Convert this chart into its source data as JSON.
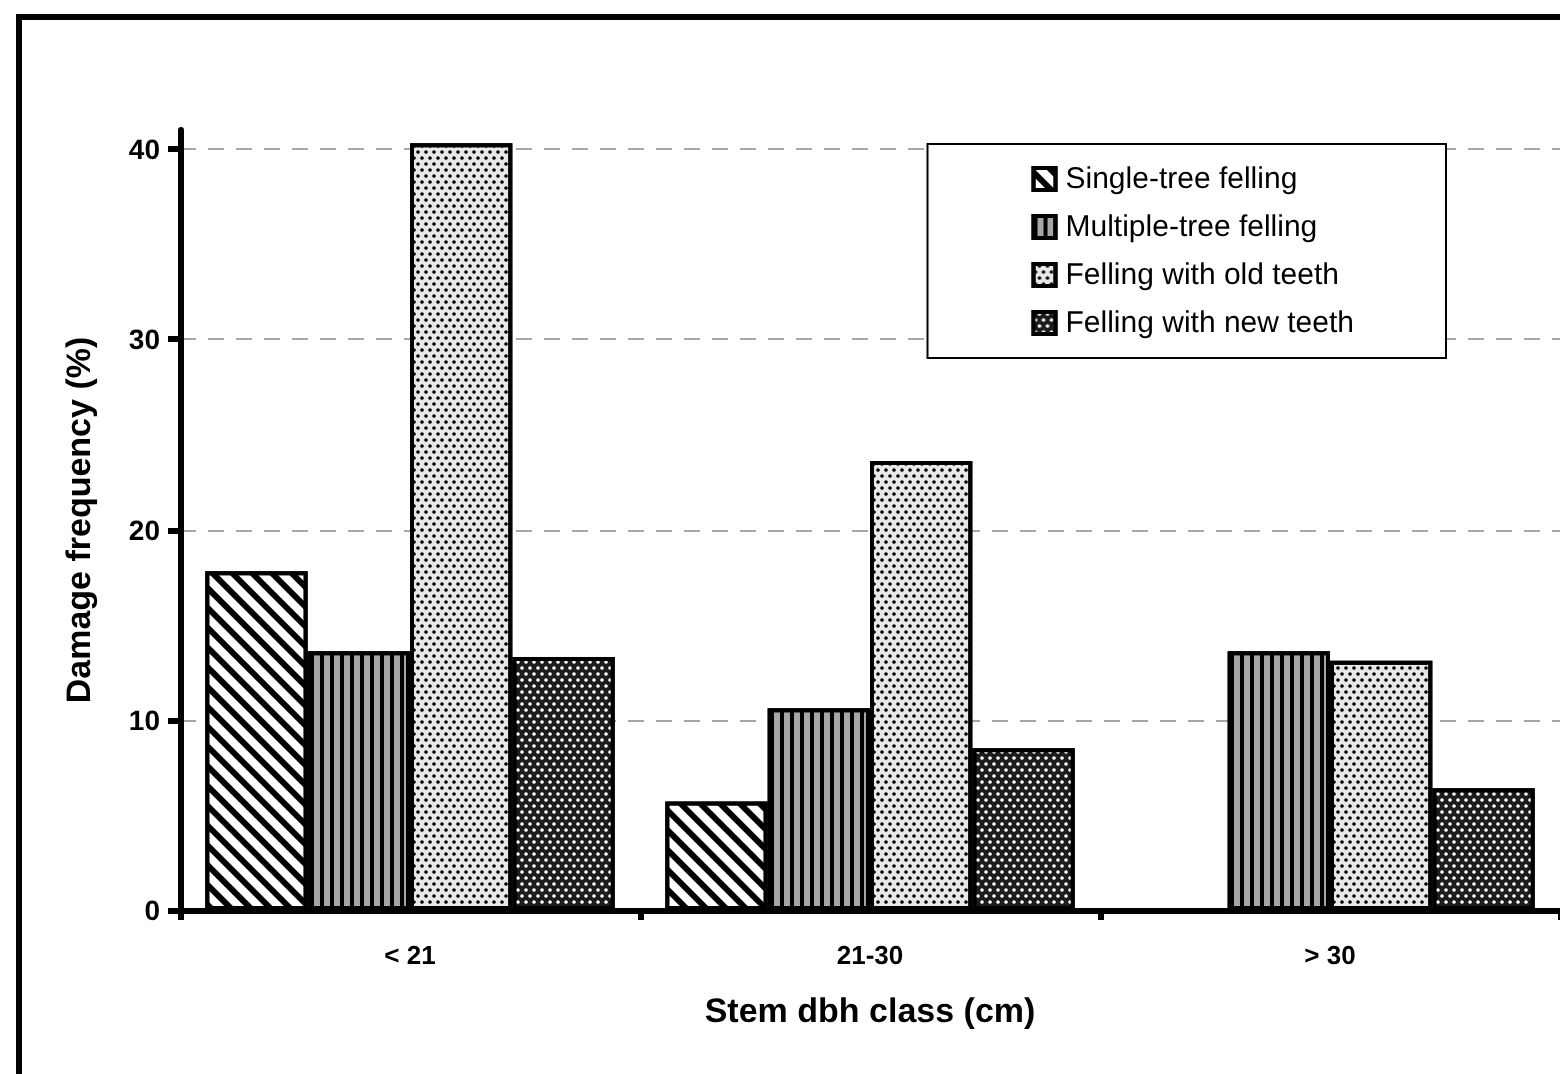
{
  "chart_data": {
    "type": "bar",
    "xlabel": "Stem dbh class (cm)",
    "ylabel": "Damage frequency (%)",
    "categories": [
      "< 21",
      "21-30",
      "> 30"
    ],
    "series": [
      {
        "name": "Single-tree felling",
        "color": "#ffffff",
        "values": [
          17.8,
          5.7,
          null
        ]
      },
      {
        "name": "Multiple-tree felling",
        "color": "#a6a6a6",
        "values": [
          13.6,
          10.6,
          13.6
        ]
      },
      {
        "name": "Felling with old teeth",
        "color": "#e8e8e8",
        "values": [
          40.3,
          23.6,
          13.1
        ]
      },
      {
        "name": "Felling with new teeth",
        "color": "#1c1c1c",
        "values": [
          13.3,
          8.5,
          6.4
        ]
      }
    ],
    "ylim": [
      0,
      41
    ],
    "yticks": [
      0,
      10,
      20,
      30,
      40
    ],
    "grid": "y",
    "legend": "top right"
  }
}
